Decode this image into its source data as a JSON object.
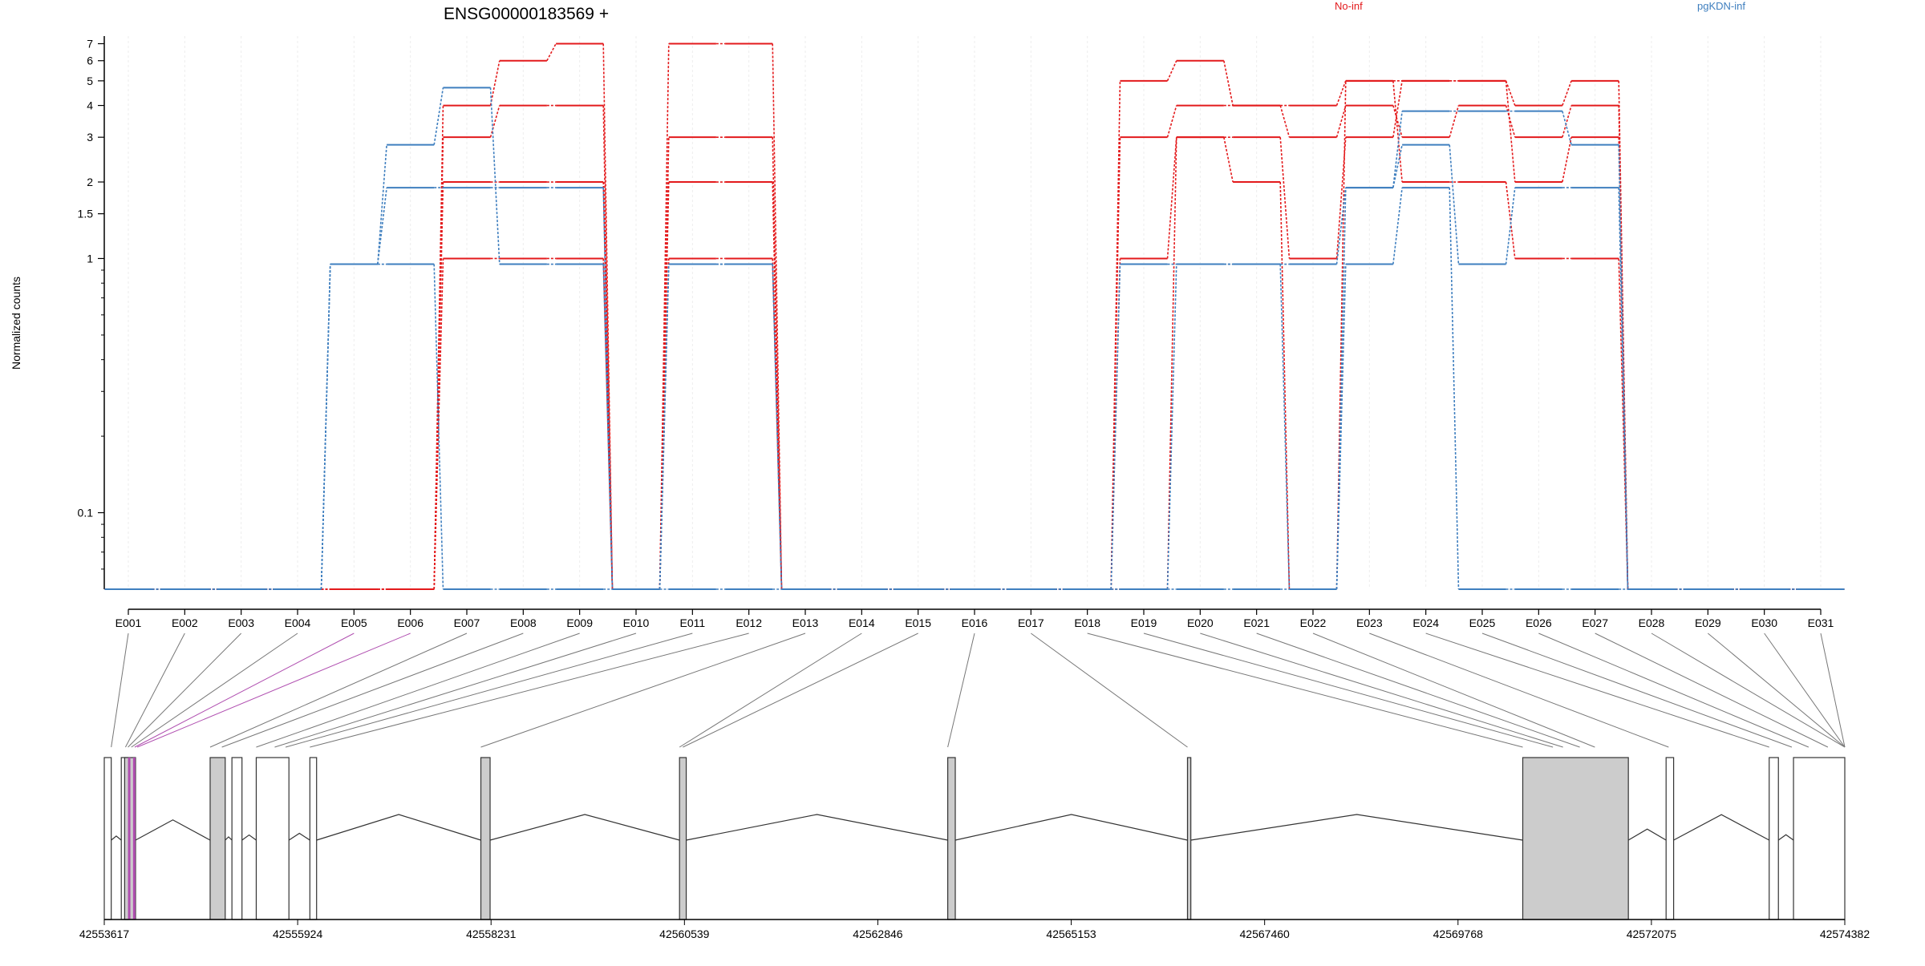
{
  "title": "ENSG00000183569 +",
  "legend": [
    {
      "name": "No-inf",
      "color": "#e31a1c"
    },
    {
      "name": "pgKDN-inf",
      "color": "#3f7fbf"
    }
  ],
  "chart_data": {
    "type": "line",
    "title": "ENSG00000183569 +",
    "ylabel": "Normalized counts",
    "xlabel": "",
    "y_scale": "log",
    "yticks": [
      0.1,
      1,
      1.5,
      2,
      3,
      4,
      5,
      6,
      7
    ],
    "ytick_labels": [
      "0.1",
      "1",
      "1.5",
      "2",
      "3",
      "4",
      "5",
      "6",
      "7"
    ],
    "ylim": [
      0.05,
      7.5
    ],
    "categories": [
      "E001",
      "E002",
      "E003",
      "E004",
      "E005",
      "E006",
      "E007",
      "E008",
      "E009",
      "E010",
      "E011",
      "E012",
      "E013",
      "E014",
      "E015",
      "E016",
      "E017",
      "E018",
      "E019",
      "E020",
      "E021",
      "E022",
      "E023",
      "E024",
      "E025",
      "E026",
      "E027",
      "E028",
      "E029",
      "E030",
      "E031"
    ],
    "series": [
      {
        "name": "No-inf",
        "color": "#e31a1c",
        "values": [
          0,
          0,
          0,
          0,
          0,
          0,
          4,
          6,
          7,
          0,
          7,
          7,
          0,
          0,
          0,
          0,
          0,
          0,
          5,
          6,
          4,
          4,
          5,
          5,
          5,
          4,
          5,
          0,
          0,
          0,
          0
        ]
      },
      {
        "name": "No-inf",
        "color": "#e31a1c",
        "values": [
          0,
          0,
          0,
          0,
          0,
          0,
          3,
          4,
          4,
          0,
          3,
          3,
          0,
          0,
          0,
          0,
          0,
          0,
          3,
          4,
          4,
          3,
          4,
          3,
          4,
          3,
          4,
          0,
          0,
          0,
          0
        ]
      },
      {
        "name": "No-inf",
        "color": "#e31a1c",
        "values": [
          0,
          0,
          0,
          0,
          0,
          0,
          2,
          2,
          2,
          0,
          2,
          2,
          0,
          0,
          0,
          0,
          0,
          0,
          1,
          3,
          3,
          1,
          3,
          5,
          5,
          2,
          3,
          0,
          0,
          0,
          0
        ]
      },
      {
        "name": "No-inf",
        "color": "#e31a1c",
        "values": [
          0,
          0,
          0,
          0,
          0,
          0,
          1,
          1,
          1,
          0,
          1,
          1,
          0,
          0,
          0,
          0,
          0,
          0,
          0,
          3,
          2,
          0,
          5,
          2,
          2,
          1,
          1,
          0,
          0,
          0,
          0
        ]
      },
      {
        "name": "pgKDN-inf",
        "color": "#3f7fbf",
        "values": [
          0,
          0,
          0,
          0,
          0.95,
          2.8,
          4.7,
          0.95,
          0.95,
          0,
          0.95,
          0.95,
          0,
          0,
          0,
          0,
          0,
          0,
          0.95,
          0.95,
          0.95,
          0.95,
          1.9,
          3.8,
          3.8,
          3.8,
          2.8,
          0,
          0,
          0,
          0
        ]
      },
      {
        "name": "pgKDN-inf",
        "color": "#3f7fbf",
        "values": [
          0,
          0,
          0,
          0,
          0.95,
          1.9,
          1.9,
          1.9,
          1.9,
          0,
          0.95,
          0.95,
          0,
          0,
          0,
          0,
          0,
          0,
          0,
          0.95,
          0.95,
          0,
          1.9,
          2.8,
          0.95,
          1.9,
          1.9,
          0,
          0,
          0,
          0
        ]
      },
      {
        "name": "pgKDN-inf",
        "color": "#3f7fbf",
        "values": [
          0,
          0,
          0,
          0,
          0.95,
          0.95,
          0,
          0,
          0,
          0,
          0,
          0,
          0,
          0,
          0,
          0,
          0,
          0,
          0,
          0,
          0,
          0,
          0.95,
          1.9,
          0,
          0,
          0,
          0,
          0,
          0,
          0
        ]
      }
    ],
    "gene_model": {
      "start": 42553617,
      "end": 42574382,
      "tick_labels": [
        "42553617",
        "42555924",
        "42558231",
        "42560539",
        "42562846",
        "42565153",
        "42567460",
        "42569768",
        "42572075",
        "42574382"
      ],
      "exon_blocks": [
        {
          "start": 42553617,
          "end": 42553700,
          "filled": false
        },
        {
          "start": 42553820,
          "end": 42553900,
          "filled": false
        },
        {
          "start": 42553860,
          "end": 42553990,
          "filled": true
        },
        {
          "start": 42554880,
          "end": 42555060,
          "filled": true
        },
        {
          "start": 42555140,
          "end": 42555260,
          "filled": false
        },
        {
          "start": 42555430,
          "end": 42555820,
          "filled": false
        },
        {
          "start": 42556070,
          "end": 42556150,
          "filled": false
        },
        {
          "start": 42558110,
          "end": 42558220,
          "filled": true
        },
        {
          "start": 42560480,
          "end": 42560560,
          "filled": true
        },
        {
          "start": 42563680,
          "end": 42563770,
          "filled": true
        },
        {
          "start": 42566540,
          "end": 42566580,
          "filled": true
        },
        {
          "start": 42570540,
          "end": 42571800,
          "filled": true
        },
        {
          "start": 42572250,
          "end": 42572340,
          "filled": false
        },
        {
          "start": 42573480,
          "end": 42573590,
          "filled": false
        },
        {
          "start": 42573770,
          "end": 42574382,
          "filled": false
        }
      ],
      "exon_positions": [
        42553700,
        42553870,
        42553900,
        42553940,
        42553980,
        42554010,
        42554880,
        42555020,
        42555430,
        42555650,
        42555780,
        42556070,
        42558110,
        42560480,
        42560520,
        42563680,
        42566540,
        42570540,
        42570900,
        42571020,
        42571220,
        42571400,
        42572280,
        42573480,
        42573750,
        42573950,
        42574180,
        42574382,
        42574382,
        42574382,
        42574382
      ]
    }
  }
}
